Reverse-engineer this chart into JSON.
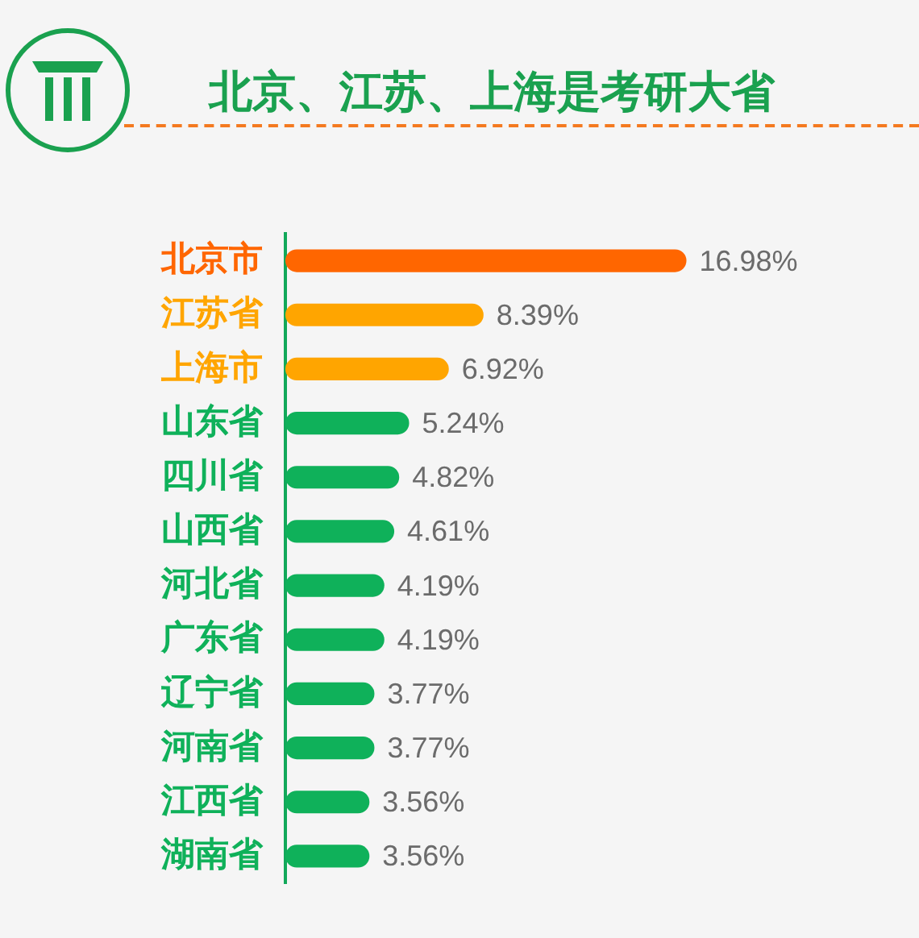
{
  "chart_data": {
    "type": "bar",
    "orientation": "horizontal",
    "title": "北京、江苏、上海是考研大省",
    "categories": [
      "北京市",
      "江苏省",
      "上海市",
      "山东省",
      "四川省",
      "山西省",
      "河北省",
      "广东省",
      "辽宁省",
      "河南省",
      "江西省",
      "湖南省"
    ],
    "values": [
      16.98,
      8.39,
      6.92,
      5.24,
      4.82,
      4.61,
      4.19,
      4.19,
      3.77,
      3.77,
      3.56,
      3.56
    ],
    "colors": [
      "#ff6600",
      "#ffa500",
      "#ffa500",
      "#0fb15a",
      "#0fb15a",
      "#0fb15a",
      "#0fb15a",
      "#0fb15a",
      "#0fb15a",
      "#0fb15a",
      "#0fb15a",
      "#0fb15a"
    ],
    "value_labels": [
      "16.98%",
      "8.39%",
      "6.92%",
      "5.24%",
      "4.82%",
      "4.61%",
      "4.19%",
      "4.19%",
      "3.77%",
      "3.77%",
      "3.56%",
      "3.56%"
    ],
    "tick_labels": "y",
    "grid": false,
    "legend": false
  }
}
